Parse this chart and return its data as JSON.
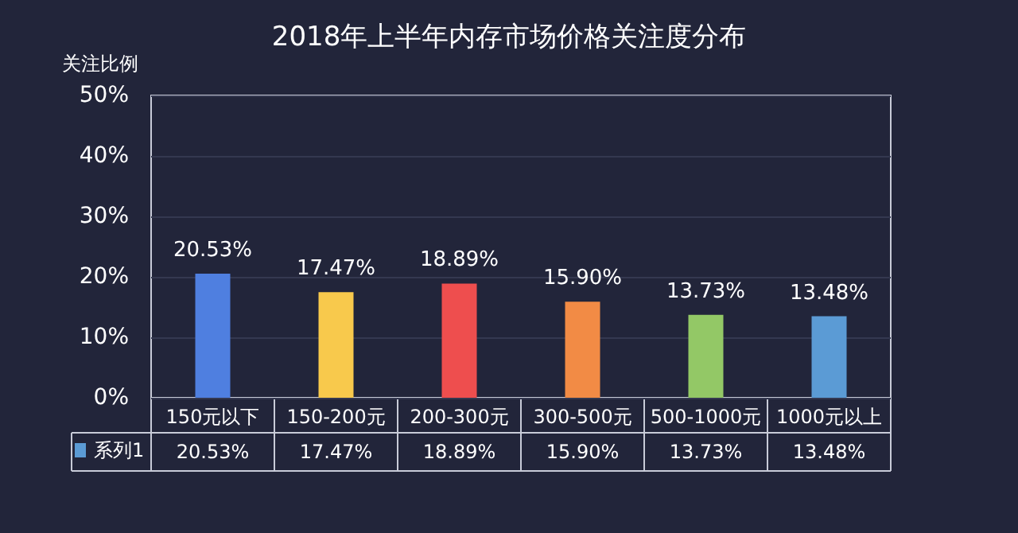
{
  "chart_data": {
    "type": "bar",
    "title": "2018年上半年内存市场价格关注度分布",
    "ylabel": "关注比例",
    "categories": [
      "150元以下",
      "150-200元",
      "200-300元",
      "300-500元",
      "500-1000元",
      "1000元以上"
    ],
    "series": [
      {
        "name": "系列1",
        "color": "#5b9bd5",
        "colors": [
          "#4f7fe0",
          "#f8c94c",
          "#ee4e4e",
          "#f28b45",
          "#93c866",
          "#5b9bd5"
        ],
        "values": [
          20.53,
          17.47,
          18.89,
          15.9,
          13.73,
          13.48
        ],
        "value_labels": [
          "20.53%",
          "17.47%",
          "18.89%",
          "15.90%",
          "13.73%",
          "13.48%"
        ]
      }
    ],
    "ylim": [
      0,
      50
    ],
    "yticks": [
      {
        "value": 0,
        "label": "0%"
      },
      {
        "value": 10,
        "label": "10%"
      },
      {
        "value": 20,
        "label": "20%"
      },
      {
        "value": 30,
        "label": "30%"
      },
      {
        "value": 40,
        "label": "40%"
      },
      {
        "value": 50,
        "label": "50%"
      }
    ],
    "grid": "y",
    "legend": "bottom left"
  }
}
